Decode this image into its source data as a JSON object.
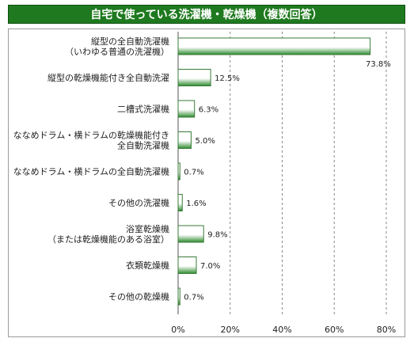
{
  "chart_data": {
    "type": "bar",
    "orientation": "horizontal",
    "title": "自宅で使っている洗濯機・乾燥機（複数回答）",
    "categories": [
      [
        "縦型の全自動洗濯機",
        "（いわゆる普通の洗濯機）"
      ],
      [
        "縦型の乾燥機能付き全自動洗濯"
      ],
      [
        "二槽式洗濯機"
      ],
      [
        "ななめドラム・横ドラムの乾燥機能付き",
        "全自動洗濯機"
      ],
      [
        "ななめドラム・横ドラムの全自動洗濯機"
      ],
      [
        "その他の洗濯機"
      ],
      [
        "浴室乾燥機",
        "（または乾燥機能のある浴室）"
      ],
      [
        "衣類乾燥機"
      ],
      [
        "その他の乾燥機"
      ]
    ],
    "values": [
      73.8,
      12.5,
      6.3,
      5.0,
      0.7,
      1.6,
      9.8,
      7.0,
      0.7
    ],
    "value_labels": [
      "73.8%",
      "12.5%",
      "6.3%",
      "5.0%",
      "0.7%",
      "1.6%",
      "9.8%",
      "7.0%",
      "0.7%"
    ],
    "xlim": [
      0,
      80
    ],
    "x_ticks": [
      0,
      20,
      40,
      60,
      80
    ],
    "x_tick_labels": [
      "0%",
      "20%",
      "40%",
      "60%",
      "80%"
    ],
    "grid": "vertical dashed",
    "colors": {
      "title_bg": "#1f7a1f",
      "bar_edge": "#3a7a3a",
      "bar_light": "#ffffff",
      "bar_dark": "#2e8b2e",
      "grid": "#888888"
    }
  }
}
